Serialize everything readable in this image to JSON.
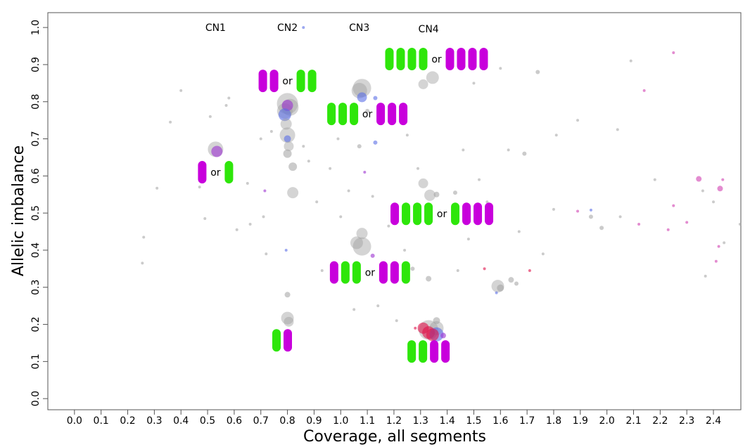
{
  "chart_data": {
    "type": "scatter",
    "title": "",
    "xlabel": "Coverage, all segments",
    "ylabel": "Allelic imbalance",
    "xlim": [
      -0.1,
      2.503
    ],
    "ylim": [
      -0.03,
      1.04
    ],
    "xticks": [
      "0.0",
      "0.1",
      "0.2",
      "0.3",
      "0.4",
      "0.5",
      "0.6",
      "0.7",
      "0.8",
      "0.9",
      "1.0",
      "1.1",
      "1.2",
      "1.3",
      "1.4",
      "1.5",
      "1.6",
      "1.7",
      "1.8",
      "1.9",
      "2.0",
      "2.1",
      "2.2",
      "2.3",
      "2.4"
    ],
    "yticks": [
      "0.0",
      "0.1",
      "0.2",
      "0.3",
      "0.4",
      "0.5",
      "0.6",
      "0.7",
      "0.8",
      "0.9",
      "1.0"
    ],
    "grid": false,
    "colors": {
      "magenta": "#c800dc",
      "green": "#2ee60a",
      "grey": "#a0a0a0",
      "blue": "#5a6ee6",
      "purple": "#9b30d0",
      "red": "#e0104a",
      "pink": "#d040b0"
    },
    "cn_labels": [
      {
        "text": "CN1",
        "x": 0.53,
        "y": 1.0
      },
      {
        "text": "CN2",
        "x": 0.8,
        "y": 1.0
      },
      {
        "text": "CN3",
        "x": 1.07,
        "y": 1.0
      },
      {
        "text": "CN4",
        "x": 1.33,
        "y": 0.996
      }
    ],
    "genotype_glyphs": [
      {
        "left": "M",
        "right": "G",
        "sep": "or",
        "x": 0.53,
        "y": 0.61
      },
      {
        "left": "MM",
        "right": "GG",
        "sep": "or",
        "x": 0.8,
        "y": 0.856
      },
      {
        "left": "GGG",
        "right": "MMM",
        "sep": "or",
        "x": 1.1,
        "y": 0.767
      },
      {
        "left": "GGGG",
        "right": "MMMM",
        "sep": "or",
        "x": 1.36,
        "y": 0.915
      },
      {
        "left": "MGGG",
        "right": "GMMM",
        "sep": "or",
        "x": 1.38,
        "y": 0.498
      },
      {
        "left": "MGG",
        "right": "MMG",
        "sep": "or",
        "x": 1.11,
        "y": 0.34
      },
      {
        "left": "GM",
        "right": "",
        "sep": "",
        "x": 0.78,
        "y": 0.157
      },
      {
        "left": "GGMM",
        "right": "",
        "sep": "",
        "x": 1.33,
        "y": 0.127
      }
    ],
    "points": [
      {
        "x": 0.53,
        "y": 0.672,
        "s": 11,
        "c": "grey"
      },
      {
        "x": 0.535,
        "y": 0.666,
        "s": 8,
        "c": "purple"
      },
      {
        "x": 0.8,
        "y": 0.795,
        "s": 15,
        "c": "grey"
      },
      {
        "x": 0.81,
        "y": 0.785,
        "s": 12,
        "c": "grey"
      },
      {
        "x": 0.79,
        "y": 0.775,
        "s": 11,
        "c": "grey"
      },
      {
        "x": 0.8,
        "y": 0.79,
        "s": 8,
        "c": "purple"
      },
      {
        "x": 0.79,
        "y": 0.765,
        "s": 9,
        "c": "blue"
      },
      {
        "x": 0.795,
        "y": 0.74,
        "s": 8,
        "c": "grey"
      },
      {
        "x": 0.8,
        "y": 0.71,
        "s": 11,
        "c": "grey"
      },
      {
        "x": 0.8,
        "y": 0.7,
        "s": 5,
        "c": "blue"
      },
      {
        "x": 0.805,
        "y": 0.68,
        "s": 7,
        "c": "grey"
      },
      {
        "x": 0.8,
        "y": 0.66,
        "s": 6,
        "c": "grey"
      },
      {
        "x": 0.82,
        "y": 0.625,
        "s": 6,
        "c": "grey"
      },
      {
        "x": 0.82,
        "y": 0.555,
        "s": 8,
        "c": "grey"
      },
      {
        "x": 0.8,
        "y": 0.217,
        "s": 9,
        "c": "grey"
      },
      {
        "x": 0.805,
        "y": 0.207,
        "s": 7,
        "c": "grey"
      },
      {
        "x": 0.8,
        "y": 0.28,
        "s": 4,
        "c": "grey"
      },
      {
        "x": 0.795,
        "y": 0.4,
        "s": 2,
        "c": "blue"
      },
      {
        "x": 0.86,
        "y": 1.0,
        "s": 2,
        "c": "blue"
      },
      {
        "x": 0.715,
        "y": 0.56,
        "s": 2,
        "c": "purple"
      },
      {
        "x": 1.08,
        "y": 0.837,
        "s": 13,
        "c": "grey"
      },
      {
        "x": 1.07,
        "y": 0.83,
        "s": 11,
        "c": "grey"
      },
      {
        "x": 1.08,
        "y": 0.812,
        "s": 7,
        "c": "blue"
      },
      {
        "x": 1.13,
        "y": 0.81,
        "s": 3,
        "c": "blue"
      },
      {
        "x": 1.13,
        "y": 0.69,
        "s": 3,
        "c": "blue"
      },
      {
        "x": 1.1,
        "y": 0.775,
        "s": 3,
        "c": "grey"
      },
      {
        "x": 1.08,
        "y": 0.41,
        "s": 13,
        "c": "grey"
      },
      {
        "x": 1.06,
        "y": 0.42,
        "s": 9,
        "c": "grey"
      },
      {
        "x": 1.08,
        "y": 0.445,
        "s": 8,
        "c": "grey"
      },
      {
        "x": 1.12,
        "y": 0.385,
        "s": 3,
        "c": "purple"
      },
      {
        "x": 1.09,
        "y": 0.61,
        "s": 2,
        "c": "purple"
      },
      {
        "x": 1.345,
        "y": 0.865,
        "s": 9,
        "c": "grey"
      },
      {
        "x": 1.31,
        "y": 0.847,
        "s": 7,
        "c": "grey"
      },
      {
        "x": 1.31,
        "y": 0.58,
        "s": 7,
        "c": "grey"
      },
      {
        "x": 1.335,
        "y": 0.548,
        "s": 8,
        "c": "grey"
      },
      {
        "x": 1.36,
        "y": 0.55,
        "s": 4,
        "c": "grey"
      },
      {
        "x": 1.43,
        "y": 0.555,
        "s": 3,
        "c": "grey"
      },
      {
        "x": 1.33,
        "y": 0.185,
        "s": 14,
        "c": "grey"
      },
      {
        "x": 1.36,
        "y": 0.19,
        "s": 10,
        "c": "grey"
      },
      {
        "x": 1.31,
        "y": 0.19,
        "s": 8,
        "c": "red"
      },
      {
        "x": 1.33,
        "y": 0.178,
        "s": 9,
        "c": "red"
      },
      {
        "x": 1.36,
        "y": 0.173,
        "s": 10,
        "c": "blue"
      },
      {
        "x": 1.345,
        "y": 0.172,
        "s": 9,
        "c": "red"
      },
      {
        "x": 1.385,
        "y": 0.17,
        "s": 4,
        "c": "purple"
      },
      {
        "x": 1.28,
        "y": 0.19,
        "s": 2,
        "c": "red"
      },
      {
        "x": 1.36,
        "y": 0.21,
        "s": 5,
        "c": "grey"
      },
      {
        "x": 1.33,
        "y": 0.323,
        "s": 4,
        "c": "grey"
      },
      {
        "x": 1.59,
        "y": 0.303,
        "s": 9,
        "c": "grey"
      },
      {
        "x": 1.6,
        "y": 0.298,
        "s": 5,
        "c": "grey"
      },
      {
        "x": 1.585,
        "y": 0.285,
        "s": 2,
        "c": "blue"
      },
      {
        "x": 1.64,
        "y": 0.32,
        "s": 4,
        "c": "grey"
      },
      {
        "x": 1.66,
        "y": 0.31,
        "s": 3,
        "c": "grey"
      },
      {
        "x": 1.74,
        "y": 0.88,
        "s": 3,
        "c": "grey"
      },
      {
        "x": 1.69,
        "y": 0.66,
        "s": 3,
        "c": "grey"
      },
      {
        "x": 1.54,
        "y": 0.35,
        "s": 2,
        "c": "red"
      },
      {
        "x": 1.71,
        "y": 0.345,
        "s": 2,
        "c": "red"
      },
      {
        "x": 2.345,
        "y": 0.592,
        "s": 4,
        "c": "pink"
      },
      {
        "x": 2.425,
        "y": 0.566,
        "s": 4,
        "c": "pink"
      },
      {
        "x": 2.25,
        "y": 0.932,
        "s": 2,
        "c": "pink"
      },
      {
        "x": 2.14,
        "y": 0.83,
        "s": 2,
        "c": "pink"
      },
      {
        "x": 2.25,
        "y": 0.52,
        "s": 2,
        "c": "pink"
      },
      {
        "x": 2.12,
        "y": 0.47,
        "s": 2,
        "c": "pink"
      },
      {
        "x": 2.23,
        "y": 0.455,
        "s": 2,
        "c": "pink"
      },
      {
        "x": 2.3,
        "y": 0.475,
        "s": 2,
        "c": "pink"
      },
      {
        "x": 2.42,
        "y": 0.41,
        "s": 2,
        "c": "pink"
      },
      {
        "x": 2.41,
        "y": 0.37,
        "s": 2,
        "c": "pink"
      },
      {
        "x": 1.89,
        "y": 0.505,
        "s": 2,
        "c": "pink"
      },
      {
        "x": 1.94,
        "y": 0.508,
        "s": 2,
        "c": "blue"
      },
      {
        "x": 2.435,
        "y": 0.59,
        "s": 2,
        "c": "pink"
      },
      {
        "x": 1.98,
        "y": 0.46,
        "s": 3,
        "c": "grey"
      },
      {
        "x": 1.94,
        "y": 0.49,
        "s": 3,
        "c": "grey"
      },
      {
        "x": 2.09,
        "y": 0.91,
        "s": 2,
        "c": "grey"
      },
      {
        "x": 2.04,
        "y": 0.725,
        "s": 2,
        "c": "grey"
      },
      {
        "x": 2.18,
        "y": 0.59,
        "s": 2,
        "c": "grey"
      },
      {
        "x": 2.36,
        "y": 0.56,
        "s": 2,
        "c": "grey"
      },
      {
        "x": 2.5,
        "y": 0.47,
        "s": 2,
        "c": "grey"
      },
      {
        "x": 2.44,
        "y": 0.42,
        "s": 2,
        "c": "grey"
      },
      {
        "x": 2.37,
        "y": 0.33,
        "s": 2,
        "c": "grey"
      },
      {
        "x": 2.4,
        "y": 0.53,
        "s": 2,
        "c": "grey"
      },
      {
        "x": 1.81,
        "y": 0.71,
        "s": 2,
        "c": "grey"
      },
      {
        "x": 1.8,
        "y": 0.51,
        "s": 2,
        "c": "grey"
      },
      {
        "x": 1.76,
        "y": 0.39,
        "s": 2,
        "c": "grey"
      },
      {
        "x": 1.89,
        "y": 0.75,
        "s": 2,
        "c": "grey"
      },
      {
        "x": 2.05,
        "y": 0.49,
        "s": 2,
        "c": "grey"
      },
      {
        "x": 1.6,
        "y": 0.89,
        "s": 2,
        "c": "grey"
      },
      {
        "x": 1.67,
        "y": 0.45,
        "s": 2,
        "c": "grey"
      },
      {
        "x": 1.63,
        "y": 0.67,
        "s": 2,
        "c": "grey"
      },
      {
        "x": 1.52,
        "y": 0.59,
        "s": 2,
        "c": "grey"
      },
      {
        "x": 1.48,
        "y": 0.43,
        "s": 2,
        "c": "grey"
      },
      {
        "x": 0.26,
        "y": 0.435,
        "s": 2,
        "c": "grey"
      },
      {
        "x": 0.255,
        "y": 0.365,
        "s": 2,
        "c": "grey"
      },
      {
        "x": 0.31,
        "y": 0.567,
        "s": 2,
        "c": "grey"
      },
      {
        "x": 0.36,
        "y": 0.745,
        "s": 2,
        "c": "grey"
      },
      {
        "x": 0.4,
        "y": 0.83,
        "s": 2,
        "c": "grey"
      },
      {
        "x": 0.49,
        "y": 0.485,
        "s": 2,
        "c": "grey"
      },
      {
        "x": 0.51,
        "y": 0.76,
        "s": 2,
        "c": "grey"
      },
      {
        "x": 0.58,
        "y": 0.81,
        "s": 2,
        "c": "grey"
      },
      {
        "x": 0.57,
        "y": 0.79,
        "s": 2,
        "c": "grey"
      },
      {
        "x": 0.61,
        "y": 0.455,
        "s": 2,
        "c": "grey"
      },
      {
        "x": 0.66,
        "y": 0.47,
        "s": 2,
        "c": "grey"
      },
      {
        "x": 0.72,
        "y": 0.39,
        "s": 2,
        "c": "grey"
      },
      {
        "x": 0.71,
        "y": 0.49,
        "s": 2,
        "c": "grey"
      },
      {
        "x": 0.7,
        "y": 0.7,
        "s": 2,
        "c": "grey"
      },
      {
        "x": 0.74,
        "y": 0.72,
        "s": 2,
        "c": "grey"
      },
      {
        "x": 0.86,
        "y": 0.68,
        "s": 2,
        "c": "grey"
      },
      {
        "x": 0.88,
        "y": 0.64,
        "s": 2,
        "c": "grey"
      },
      {
        "x": 0.91,
        "y": 0.53,
        "s": 2,
        "c": "grey"
      },
      {
        "x": 0.93,
        "y": 0.345,
        "s": 2,
        "c": "grey"
      },
      {
        "x": 0.96,
        "y": 0.62,
        "s": 2,
        "c": "grey"
      },
      {
        "x": 0.99,
        "y": 0.7,
        "s": 2,
        "c": "grey"
      },
      {
        "x": 1.0,
        "y": 0.49,
        "s": 2,
        "c": "grey"
      },
      {
        "x": 1.03,
        "y": 0.56,
        "s": 2,
        "c": "grey"
      },
      {
        "x": 1.05,
        "y": 0.24,
        "s": 2,
        "c": "grey"
      },
      {
        "x": 1.07,
        "y": 0.68,
        "s": 3,
        "c": "grey"
      },
      {
        "x": 1.12,
        "y": 0.545,
        "s": 2,
        "c": "grey"
      },
      {
        "x": 1.14,
        "y": 0.25,
        "s": 2,
        "c": "grey"
      },
      {
        "x": 1.18,
        "y": 0.465,
        "s": 2,
        "c": "grey"
      },
      {
        "x": 1.21,
        "y": 0.21,
        "s": 2,
        "c": "grey"
      },
      {
        "x": 1.24,
        "y": 0.4,
        "s": 2,
        "c": "grey"
      },
      {
        "x": 1.27,
        "y": 0.35,
        "s": 3,
        "c": "grey"
      },
      {
        "x": 1.29,
        "y": 0.62,
        "s": 2,
        "c": "grey"
      },
      {
        "x": 1.25,
        "y": 0.71,
        "s": 2,
        "c": "grey"
      },
      {
        "x": 1.44,
        "y": 0.345,
        "s": 2,
        "c": "grey"
      },
      {
        "x": 1.46,
        "y": 0.67,
        "s": 2,
        "c": "grey"
      },
      {
        "x": 1.5,
        "y": 0.85,
        "s": 2,
        "c": "grey"
      },
      {
        "x": 1.55,
        "y": 0.53,
        "s": 2,
        "c": "grey"
      },
      {
        "x": 0.47,
        "y": 0.57,
        "s": 2,
        "c": "grey"
      },
      {
        "x": 0.65,
        "y": 0.58,
        "s": 2,
        "c": "grey"
      }
    ]
  }
}
